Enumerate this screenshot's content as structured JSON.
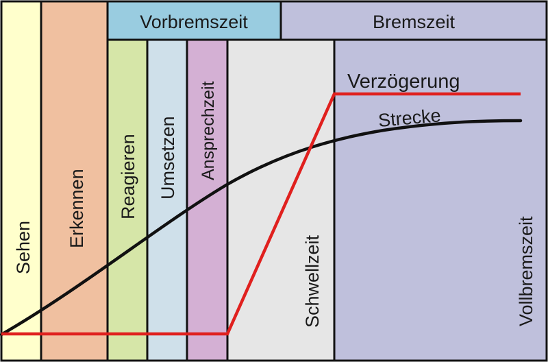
{
  "header": {
    "vorbremszeit": "Vorbremszeit",
    "bremszeit": "Bremszeit"
  },
  "phases": [
    {
      "key": "sehen",
      "label": "Sehen",
      "color": "#ffffcc"
    },
    {
      "key": "erkennen",
      "label": "Erkennen",
      "color": "#f0c0a0"
    },
    {
      "key": "reagieren",
      "label": "Reagieren",
      "color": "#d6e6a8"
    },
    {
      "key": "umsetzen",
      "label": "Umsetzen",
      "color": "#cfe0ea"
    },
    {
      "key": "ansprechzeit",
      "label": "Ansprechzeit",
      "color": "#d4b0d4"
    },
    {
      "key": "schwellzeit",
      "label": "Schwellzeit",
      "color": "#e6e6e6"
    },
    {
      "key": "vollbremszeit",
      "label": "Vollbremszeit",
      "color": "#bfc0dc"
    }
  ],
  "header_colors": {
    "vorbremszeit": "#99cce0",
    "bremszeit": "#bfc0dc"
  },
  "curves": {
    "verzoegerung": {
      "label": "Verzögerung",
      "color": "#e0201e"
    },
    "strecke": {
      "label": "Strecke",
      "color": "#111111"
    }
  }
}
